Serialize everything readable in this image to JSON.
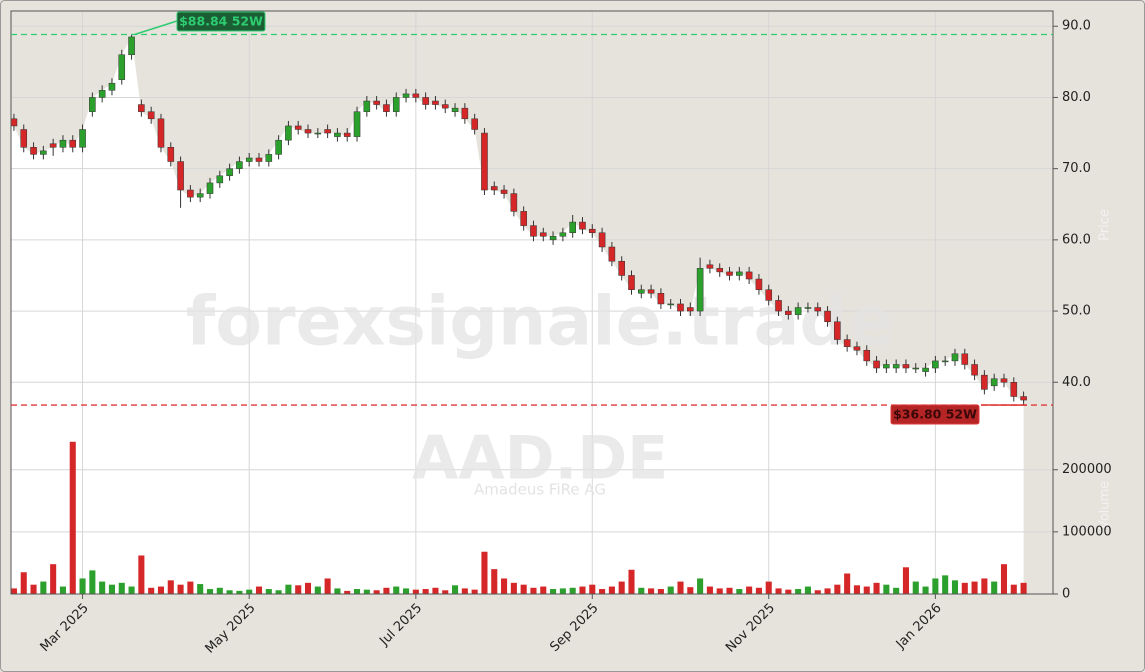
{
  "chart_data": {
    "type": "candlestick",
    "watermark": "forexsignale.trade",
    "symbol": "AAD.DE",
    "company": "Amadeus FiRe AG",
    "y_label": "Price",
    "y2_label": "Volume",
    "up_color": "#2ca02c",
    "down_color": "#d62728",
    "grid": true,
    "categories": [
      null,
      null,
      null,
      null,
      null,
      null,
      null,
      null,
      null,
      null,
      null,
      null,
      null,
      null,
      null,
      null,
      null,
      null,
      null,
      null,
      null,
      null,
      null,
      null,
      null,
      null,
      null,
      null,
      null,
      null,
      null,
      null,
      null,
      null,
      null,
      null,
      null,
      null,
      null,
      null,
      null,
      null,
      null,
      null,
      null,
      null,
      null,
      null,
      null,
      null,
      null,
      null,
      null,
      null,
      null,
      null,
      null,
      null,
      null,
      null,
      null,
      null,
      null,
      null,
      null,
      null,
      null,
      null,
      null,
      null,
      null,
      null,
      null,
      null,
      null,
      null,
      null,
      null,
      null,
      null,
      null,
      null,
      null,
      null,
      null,
      null,
      null,
      null,
      null,
      null,
      null,
      null,
      null,
      null,
      null,
      null,
      null,
      null,
      null,
      null,
      null,
      null,
      null,
      null
    ],
    "xlim": [
      -0.3,
      106
    ],
    "xticks": [
      {
        "value": 7,
        "label": "Mar 2025"
      },
      {
        "value": 24,
        "label": "May 2025"
      },
      {
        "value": 41,
        "label": "Jul 2025"
      },
      {
        "value": 59,
        "label": "Sep 2025"
      },
      {
        "value": 77,
        "label": "Nov 2025"
      },
      {
        "value": 94,
        "label": "Jan 2026"
      }
    ],
    "ylim": [
      34,
      92
    ],
    "yticks": [
      {
        "value": 40,
        "label": "40.0"
      },
      {
        "value": 50,
        "label": "50.0"
      },
      {
        "value": 60,
        "label": "60.0"
      },
      {
        "value": 70,
        "label": "70.0"
      },
      {
        "value": 80,
        "label": "80.0"
      },
      {
        "value": 90,
        "label": "90.0"
      }
    ],
    "y2lim": [
      0,
      272000
    ],
    "y2ticks": [
      0,
      100000,
      200000
    ],
    "open": [
      77,
      75.5,
      73,
      72,
      73.5,
      73,
      74,
      73,
      78,
      80,
      81,
      82.5,
      86,
      79,
      78,
      77,
      73,
      71,
      67,
      66,
      66.5,
      68,
      69,
      70,
      71,
      71.5,
      71,
      72,
      74,
      76,
      75.5,
      75,
      75.5,
      74.5,
      75,
      74.5,
      78,
      79.5,
      79,
      78,
      80,
      80.5,
      80,
      79.5,
      79,
      78,
      78.5,
      77,
      75,
      67.5,
      67,
      66.5,
      64,
      62,
      61,
      60,
      60.5,
      61,
      62.5,
      61.5,
      61,
      59,
      57,
      55,
      52.5,
      53,
      52.5,
      51,
      51,
      50.5,
      50,
      56.5,
      56,
      55.5,
      55,
      55.5,
      54.5,
      53,
      51.5,
      50,
      49.5,
      50.5,
      50.5,
      50,
      48.5,
      46,
      45,
      44.5,
      43,
      42,
      42,
      42.5,
      42,
      41.5,
      42,
      43,
      43,
      44,
      42.5,
      41,
      39.5,
      40.5,
      40,
      38
    ],
    "high": [
      77.7,
      76.2,
      73.7,
      73.2,
      74.2,
      74.7,
      74.7,
      76.2,
      80.7,
      81.7,
      82.7,
      86.7,
      88.84,
      79.7,
      78.7,
      77.7,
      73.7,
      71.7,
      67.7,
      67.2,
      68.7,
      69.7,
      70.7,
      71.7,
      72.2,
      72.2,
      72.7,
      74.7,
      76.7,
      76.7,
      76.2,
      75.7,
      76.2,
      75.7,
      75.7,
      78.7,
      80.2,
      80.2,
      79.7,
      80.7,
      81.2,
      81.2,
      80.7,
      80.2,
      79.7,
      79.2,
      79.2,
      77.7,
      75.7,
      68.2,
      67.7,
      67.2,
      64.7,
      62.7,
      61.7,
      61.2,
      61.7,
      63.5,
      63.2,
      62.2,
      61.7,
      59.7,
      57.7,
      55.7,
      53.7,
      53.7,
      53.2,
      51.7,
      51.7,
      51.2,
      57.5,
      57.2,
      56.7,
      56.2,
      56.2,
      56.2,
      55.2,
      53.7,
      52.2,
      50.7,
      51.2,
      51.2,
      51.2,
      50.7,
      49.2,
      46.7,
      45.7,
      45.2,
      43.7,
      43.2,
      43.2,
      43.2,
      42.7,
      42.7,
      43.7,
      43.7,
      44.7,
      44.7,
      43.2,
      41.7,
      41.2,
      41.2,
      40.7,
      38.7
    ],
    "low": [
      75.3,
      72.3,
      71.3,
      71.3,
      71.8,
      72.3,
      72.3,
      72.3,
      77.3,
      79.3,
      80.3,
      81.8,
      85.3,
      77.3,
      76.3,
      72.3,
      70.3,
      64.5,
      65.3,
      65.3,
      65.8,
      67.3,
      68.3,
      69.3,
      70.3,
      70.3,
      70.3,
      71.3,
      73.3,
      74.8,
      74.3,
      74.3,
      74.3,
      73.8,
      73.8,
      73.8,
      77.3,
      78.3,
      77.3,
      77.3,
      79.3,
      79.3,
      78.3,
      78.3,
      77.8,
      77.3,
      76.3,
      74.8,
      66.3,
      66.3,
      65.8,
      63.3,
      61.3,
      59.8,
      59.8,
      59.3,
      59.8,
      60.3,
      60.8,
      60.3,
      58.3,
      56.3,
      54.3,
      52.3,
      51.8,
      51.8,
      50.3,
      50.3,
      49.3,
      49.3,
      49.3,
      55.3,
      54.8,
      54.3,
      54.3,
      53.8,
      52.3,
      50.8,
      49.3,
      48.8,
      48.8,
      49.8,
      49.3,
      47.8,
      45.3,
      44.3,
      43.8,
      42.3,
      41.3,
      41.3,
      41.3,
      41.3,
      41.3,
      40.8,
      41.3,
      42.3,
      42.3,
      41.8,
      40.3,
      38.3,
      38.8,
      39.3,
      37.3,
      36.8
    ],
    "close": [
      76,
      73,
      72,
      72.5,
      73,
      74,
      73,
      75.5,
      80,
      81,
      82,
      86,
      88.5,
      78,
      77,
      73,
      71,
      67,
      66,
      66.5,
      68,
      69,
      70,
      71,
      71.5,
      71,
      72,
      74,
      76,
      75.5,
      75,
      75,
      75,
      75,
      74.5,
      78,
      79.5,
      79,
      78,
      80,
      80.5,
      80,
      79,
      79,
      78.5,
      78.5,
      77,
      75.5,
      67,
      67,
      66.5,
      64,
      62,
      60.5,
      60.5,
      60.5,
      61,
      62.5,
      61.5,
      61,
      59,
      57,
      55,
      53,
      53,
      52.5,
      51,
      51,
      50,
      50,
      56,
      56,
      55.5,
      55,
      55.5,
      54.5,
      53,
      51.5,
      50,
      49.5,
      50.5,
      50.5,
      50,
      48.5,
      46,
      45,
      44.5,
      43,
      42,
      42.5,
      42.5,
      42,
      42,
      42,
      43,
      43,
      44,
      42.5,
      41,
      39,
      40.5,
      40,
      38,
      37.5
    ],
    "volume": [
      9000,
      35000,
      15000,
      20000,
      48000,
      12000,
      245000,
      25000,
      38000,
      20000,
      15000,
      18000,
      12000,
      62000,
      10000,
      12000,
      22000,
      15000,
      20000,
      16000,
      8000,
      10000,
      6000,
      5000,
      7000,
      12000,
      8000,
      6000,
      15000,
      14000,
      18000,
      12000,
      25000,
      9000,
      5000,
      8000,
      7000,
      6000,
      10000,
      12000,
      9000,
      7000,
      8000,
      10000,
      6000,
      14000,
      9000,
      7000,
      68000,
      40000,
      25000,
      18000,
      15000,
      10000,
      12000,
      8000,
      9000,
      10000,
      12000,
      15000,
      8000,
      12000,
      20000,
      39000,
      10000,
      9000,
      8000,
      12000,
      20000,
      11000,
      25000,
      12000,
      9000,
      10000,
      8000,
      12000,
      10000,
      20000,
      9000,
      7000,
      8000,
      12000,
      6000,
      9000,
      15000,
      33000,
      14000,
      12000,
      18000,
      15000,
      10000,
      43000,
      20000,
      12000,
      25000,
      30000,
      22000,
      18000,
      20000,
      25000,
      20000,
      48000,
      15000,
      18000
    ],
    "annotations": [
      {
        "value": 88.84,
        "label": "$88.84 52W",
        "color": "#2ecc71",
        "box": "#1b5e34"
      },
      {
        "value": 36.8,
        "label": "$36.80 52W",
        "color": "#e03a3a",
        "box": "#b52525"
      }
    ]
  }
}
